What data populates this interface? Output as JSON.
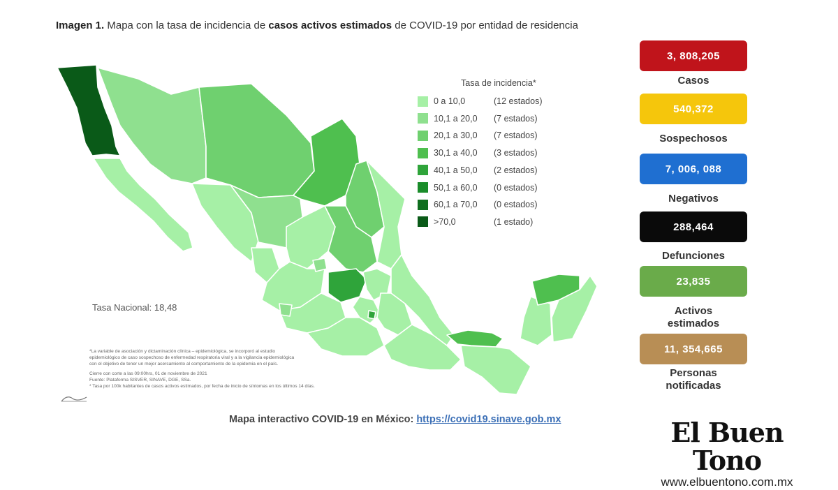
{
  "title": {
    "prefix": "Imagen 1.",
    "part1": " Mapa con la tasa de incidencia de ",
    "bold": "casos activos estimados",
    "part2": " de COVID-19 por entidad de residencia"
  },
  "legend": {
    "title": "Tasa de incidencia*",
    "items": [
      {
        "range": "0   a  10,0",
        "count": "(12 estados)",
        "color": "#a6f0a6"
      },
      {
        "range": "10,1 a 20,0",
        "count": "(7 estados)",
        "color": "#8fe08f"
      },
      {
        "range": "20,1 a 30,0",
        "count": "(7 estados)",
        "color": "#6fd06f"
      },
      {
        "range": "30,1 a 40,0",
        "count": "(3 estados)",
        "color": "#4fbf4f"
      },
      {
        "range": "40,1 a 50,0",
        "count": "(2 estados)",
        "color": "#2fa43a"
      },
      {
        "range": "50,1 a 60,0",
        "count": "(0 estados)",
        "color": "#1a8c2a"
      },
      {
        "range": "60,1 a 70,0",
        "count": "(0 estados)",
        "color": "#0f6e1f"
      },
      {
        "range": ">70,0",
        "count": "(1 estado)",
        "color": "#0a5a18"
      }
    ]
  },
  "tasa_nacional": "Tasa Nacional: 18,48",
  "notes": {
    "line1": "*La variable de asociación y dictaminación clínica – epidemiológica, se incorporó al estudio",
    "line2": "epidemiológico de caso sospechoso de enfermedad respiratoria viral y a la vigilancia epidemiológica",
    "line3": "con el objetivo de tener un mejor acercamiento al comportamiento de la epidemia en el país.",
    "line4": "Cierre con corte a las 09:00hrs, 01 de noviembre de 2021",
    "line5": "Fuente: Plataforma SISVER, SINAVE, DGE, SSa.",
    "line6": "* Tasa por 100k habitantes de casos activos estimados, por fecha de inicio de síntomas en los últimos 14 días."
  },
  "footer": {
    "label": "Mapa interactivo COVID-19 en México: ",
    "link": "https://covid19.sinave.gob.mx"
  },
  "stats": [
    {
      "value": "3, 808,205",
      "label": "Casos",
      "color": "#c0141b"
    },
    {
      "value": "540,372",
      "label": "Sospechosos",
      "color": "#f5c60c"
    },
    {
      "value": "7, 006, 088",
      "label": "Negativos",
      "color": "#1f6fd1"
    },
    {
      "value": "288,464",
      "label": "Defunciones",
      "color": "#0a0a0a"
    },
    {
      "value": "23,835",
      "label": "Activos estimados",
      "color": "#6aab4a"
    },
    {
      "value": "11, 354,665",
      "label": "Personas notificadas",
      "color": "#b88e55"
    }
  ],
  "brand": {
    "name": "El Buen Tono",
    "url": "www.elbuentono.com.mx"
  },
  "map_colors": {
    "light": "#a6f0a6",
    "mid": "#8fe08f",
    "midplus": "#6fd06f",
    "medium": "#4fbf4f",
    "strong": "#2fa43a",
    "darkest": "#0a5a18",
    "border": "#ffffff"
  }
}
